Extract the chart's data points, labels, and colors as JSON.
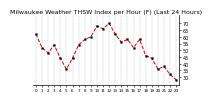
{
  "title": "Milwaukee Weather THSW Index per Hour (F) (Last 24 Hours)",
  "x": [
    0,
    1,
    2,
    3,
    4,
    5,
    6,
    7,
    8,
    9,
    10,
    11,
    12,
    13,
    14,
    15,
    16,
    17,
    18,
    19,
    20,
    21,
    22,
    23
  ],
  "y": [
    62,
    52,
    48,
    54,
    44,
    36,
    44,
    54,
    58,
    60,
    68,
    66,
    70,
    62,
    56,
    58,
    52,
    58,
    46,
    44,
    36,
    38,
    32,
    28
  ],
  "line_color": "#cc0000",
  "marker_color": "#000000",
  "bg_color": "#ffffff",
  "grid_color": "#888888",
  "ylim": [
    24,
    76
  ],
  "ytick_values": [
    30,
    35,
    40,
    45,
    50,
    55,
    60,
    65,
    70
  ],
  "ytick_labels": [
    "30",
    "35",
    "40",
    "45",
    "50",
    "55",
    "60",
    "65",
    "70"
  ],
  "title_fontsize": 4.5,
  "tick_fontsize": 3.5,
  "line_width": 0.7,
  "marker_size": 1.2
}
